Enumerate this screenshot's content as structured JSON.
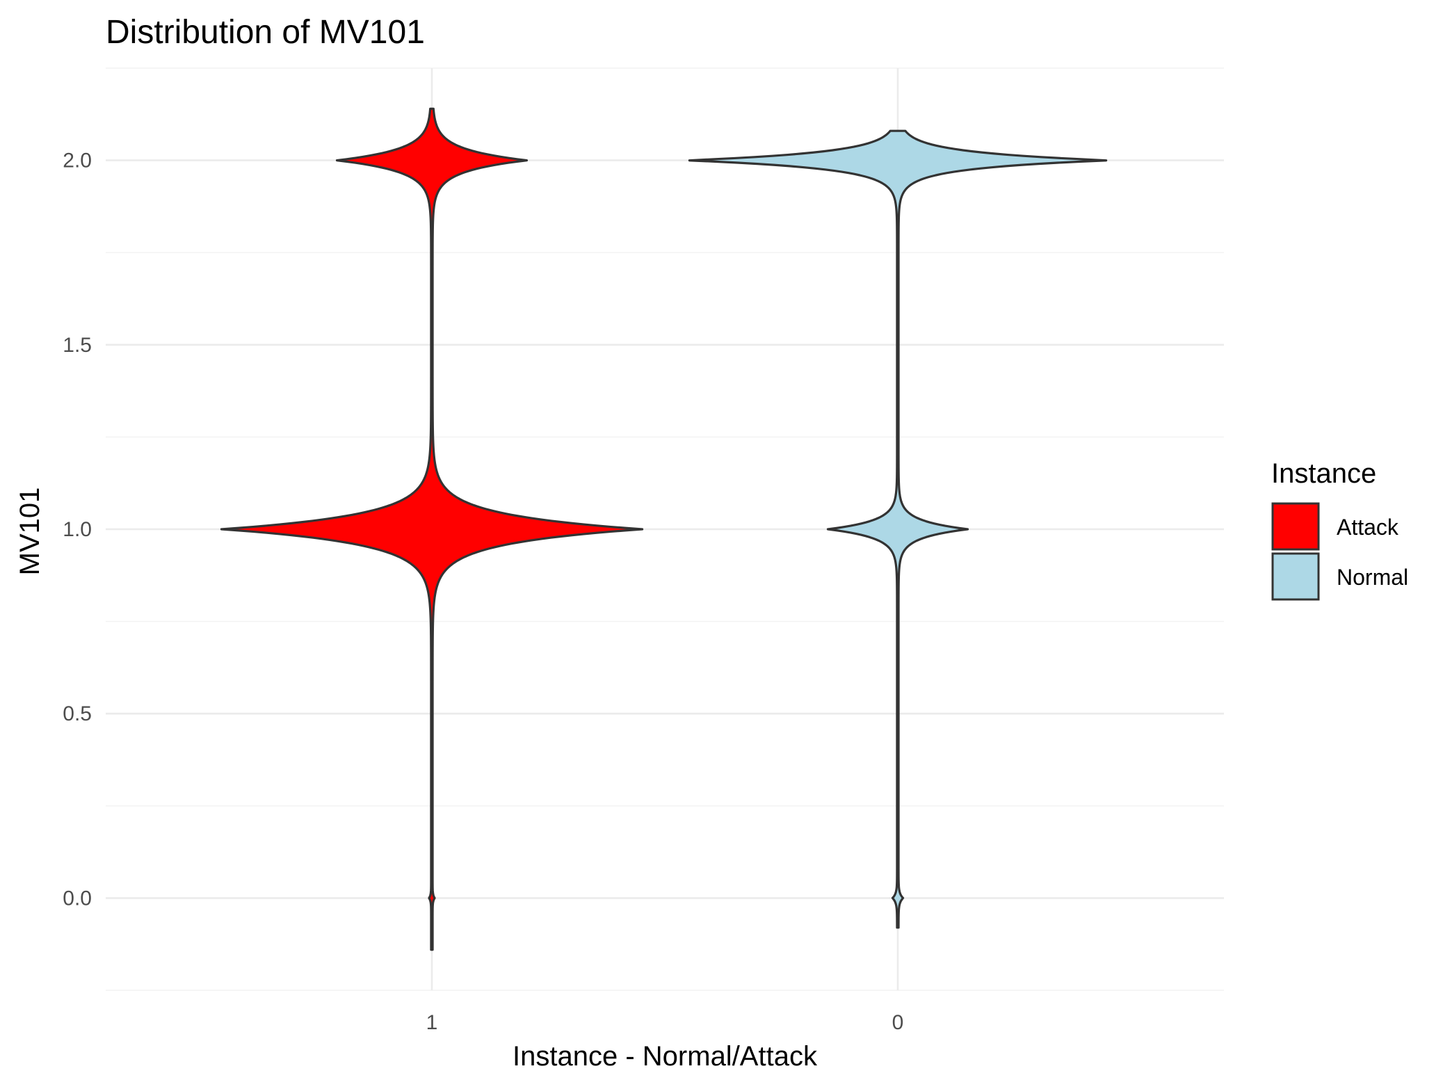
{
  "chart_data": {
    "type": "violin",
    "title": "Distribution of MV101",
    "xlabel": "Instance - Normal/Attack",
    "ylabel": "MV101",
    "categories": [
      "1",
      "0"
    ],
    "ylim": [
      -0.25,
      2.25
    ],
    "yticks": [
      0.0,
      0.5,
      1.0,
      1.5,
      2.0
    ],
    "ytick_labels": [
      "0.0",
      "0.5",
      "1.0",
      "1.5",
      "2.0"
    ],
    "grid": true,
    "legend": {
      "title": "Instance",
      "position": "right",
      "entries": [
        {
          "label": "Attack",
          "color": "#ff0000"
        },
        {
          "label": "Normal",
          "color": "#add8e6"
        }
      ]
    },
    "series": [
      {
        "category": "1",
        "group": "Attack",
        "color": "#ff0000",
        "y_range": [
          -0.14,
          2.14
        ],
        "modes": [
          {
            "value": 0.0,
            "rel_width": 0.01,
            "spread": 0.012
          },
          {
            "value": 1.0,
            "rel_width": 1.0,
            "spread": 0.06
          },
          {
            "value": 2.0,
            "rel_width": 0.45,
            "spread": 0.045
          }
        ]
      },
      {
        "category": "0",
        "group": "Normal",
        "color": "#add8e6",
        "y_range": [
          -0.08,
          2.08
        ],
        "modes": [
          {
            "value": 0.0,
            "rel_width": 0.022,
            "spread": 0.018
          },
          {
            "value": 1.0,
            "rel_width": 0.33,
            "spread": 0.035
          },
          {
            "value": 2.0,
            "rel_width": 1.0,
            "spread": 0.035
          }
        ]
      }
    ]
  }
}
